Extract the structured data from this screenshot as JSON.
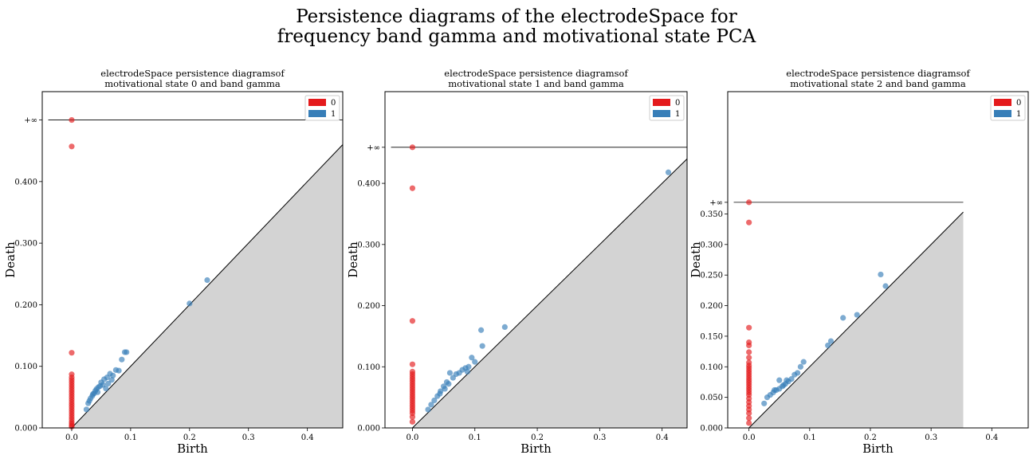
{
  "figure": {
    "title_line1": "Persistence diagrams of the electrodeSpace for",
    "title_line2": "frequency band gamma and motivational state PCA"
  },
  "colors": {
    "h0": "#e41a1c",
    "h1": "#377eb8",
    "diagonal_fill": "#d3d3d3"
  },
  "chart_data": [
    {
      "type": "scatter",
      "title_line1": "electrodeSpace persistence diagramsof",
      "title_line2": "motivational state 0 and band gamma",
      "xlabel": "Birth",
      "ylabel": "Death",
      "infinity_label": "+∞",
      "infinity_value": 0.5,
      "xlim": [
        -0.05,
        0.46
      ],
      "ylim": [
        0.0,
        0.546
      ],
      "xticks": [
        0.0,
        0.1,
        0.2,
        0.3,
        0.4
      ],
      "xtick_labels": [
        "0.0",
        "0.1",
        "0.2",
        "0.3",
        "0.4"
      ],
      "yticks": [
        0.0,
        0.1,
        0.2,
        0.3,
        0.4
      ],
      "ytick_labels": [
        "0.000",
        "0.100",
        "0.200",
        "0.300",
        "0.400"
      ],
      "diag_max": 0.46,
      "legend_position": "upper-right",
      "series": [
        {
          "name": "0",
          "x": [
            0,
            0,
            0,
            0,
            0,
            0,
            0,
            0,
            0,
            0,
            0,
            0,
            0,
            0,
            0,
            0,
            0,
            0,
            0,
            0,
            0,
            0,
            0,
            0,
            0,
            0
          ],
          "y": [
            0.5,
            0.457,
            0.122,
            0.087,
            0.082,
            0.078,
            0.074,
            0.07,
            0.066,
            0.062,
            0.058,
            0.054,
            0.05,
            0.046,
            0.042,
            0.038,
            0.034,
            0.03,
            0.026,
            0.022,
            0.018,
            0.014,
            0.01,
            0.007,
            0.004,
            0.002
          ]
        },
        {
          "name": "1",
          "x": [
            0.23,
            0.2,
            0.093,
            0.09,
            0.085,
            0.075,
            0.065,
            0.06,
            0.055,
            0.05,
            0.048,
            0.045,
            0.042,
            0.04,
            0.038,
            0.035,
            0.032,
            0.03,
            0.028,
            0.025,
            0.07,
            0.08,
            0.062,
            0.053,
            0.044,
            0.036,
            0.058,
            0.068
          ],
          "y": [
            0.24,
            0.202,
            0.123,
            0.123,
            0.111,
            0.094,
            0.088,
            0.082,
            0.079,
            0.074,
            0.068,
            0.066,
            0.063,
            0.06,
            0.056,
            0.052,
            0.048,
            0.044,
            0.04,
            0.03,
            0.085,
            0.093,
            0.072,
            0.07,
            0.058,
            0.055,
            0.064,
            0.078
          ]
        }
      ]
    },
    {
      "type": "scatter",
      "title_line1": "electrodeSpace persistence diagramsof",
      "title_line2": "motivational state 1 and band gamma",
      "xlabel": "Birth",
      "ylabel": "Death",
      "infinity_label": "+∞",
      "infinity_value": 0.459,
      "xlim": [
        -0.044,
        0.44
      ],
      "ylim": [
        0.0,
        0.55
      ],
      "xticks": [
        0.0,
        0.1,
        0.2,
        0.3,
        0.4
      ],
      "xtick_labels": [
        "0.0",
        "0.1",
        "0.2",
        "0.3",
        "0.4"
      ],
      "yticks": [
        0.0,
        0.1,
        0.2,
        0.3,
        0.4
      ],
      "ytick_labels": [
        "0.000",
        "0.100",
        "0.200",
        "0.300",
        "0.400"
      ],
      "diag_max": 0.44,
      "legend_position": "upper-right",
      "series": [
        {
          "name": "0",
          "x": [
            0,
            0,
            0,
            0,
            0,
            0,
            0,
            0,
            0,
            0,
            0,
            0,
            0,
            0,
            0,
            0,
            0,
            0,
            0,
            0,
            0,
            0,
            0,
            0
          ],
          "y": [
            0.459,
            0.392,
            0.175,
            0.104,
            0.092,
            0.088,
            0.084,
            0.08,
            0.076,
            0.072,
            0.068,
            0.064,
            0.06,
            0.056,
            0.052,
            0.048,
            0.044,
            0.04,
            0.036,
            0.032,
            0.028,
            0.024,
            0.018,
            0.01
          ]
        },
        {
          "name": "1",
          "x": [
            0.41,
            0.148,
            0.11,
            0.112,
            0.095,
            0.1,
            0.09,
            0.085,
            0.08,
            0.07,
            0.065,
            0.06,
            0.055,
            0.05,
            0.045,
            0.04,
            0.035,
            0.03,
            0.025,
            0.075,
            0.088,
            0.052,
            0.044,
            0.058
          ],
          "y": [
            0.418,
            0.165,
            0.16,
            0.134,
            0.115,
            0.108,
            0.1,
            0.098,
            0.095,
            0.088,
            0.082,
            0.09,
            0.075,
            0.068,
            0.06,
            0.052,
            0.045,
            0.038,
            0.03,
            0.09,
            0.092,
            0.064,
            0.056,
            0.072
          ]
        }
      ]
    },
    {
      "type": "scatter",
      "title_line1": "electrodeSpace persistence diagramsof",
      "title_line2": "motivational state 2 and band gamma",
      "xlabel": "Birth",
      "ylabel": "Death",
      "infinity_label": "+∞",
      "infinity_value": 0.369,
      "xlim": [
        -0.035,
        0.46
      ],
      "ylim": [
        0.0,
        0.55
      ],
      "xticks": [
        0.0,
        0.1,
        0.2,
        0.3,
        0.4
      ],
      "xtick_labels": [
        "0.0",
        "0.1",
        "0.2",
        "0.3",
        "0.4"
      ],
      "yticks": [
        0.0,
        0.05,
        0.1,
        0.15,
        0.2,
        0.25,
        0.3,
        0.35
      ],
      "ytick_labels": [
        "0.000",
        "0.050",
        "0.100",
        "0.150",
        "0.200",
        "0.250",
        "0.300",
        "0.350"
      ],
      "diag_max": 0.353,
      "legend_position": "upper-right",
      "series": [
        {
          "name": "0",
          "x": [
            0,
            0,
            0,
            0,
            0,
            0,
            0,
            0,
            0,
            0,
            0,
            0,
            0,
            0,
            0,
            0,
            0,
            0,
            0,
            0,
            0,
            0,
            0,
            0,
            0,
            0,
            0,
            0
          ],
          "y": [
            0.369,
            0.336,
            0.164,
            0.14,
            0.135,
            0.124,
            0.115,
            0.107,
            0.102,
            0.098,
            0.094,
            0.09,
            0.086,
            0.082,
            0.078,
            0.074,
            0.07,
            0.066,
            0.062,
            0.058,
            0.054,
            0.048,
            0.042,
            0.036,
            0.03,
            0.024,
            0.016,
            0.008
          ]
        },
        {
          "name": "1",
          "x": [
            0.217,
            0.225,
            0.155,
            0.178,
            0.135,
            0.13,
            0.09,
            0.085,
            0.08,
            0.075,
            0.07,
            0.065,
            0.06,
            0.055,
            0.05,
            0.045,
            0.04,
            0.035,
            0.03,
            0.025,
            0.05,
            0.062,
            0.042,
            0.057
          ],
          "y": [
            0.251,
            0.232,
            0.18,
            0.185,
            0.142,
            0.135,
            0.108,
            0.1,
            0.09,
            0.087,
            0.08,
            0.076,
            0.072,
            0.068,
            0.064,
            0.062,
            0.058,
            0.054,
            0.05,
            0.04,
            0.078,
            0.078,
            0.062,
            0.07
          ]
        }
      ]
    }
  ]
}
